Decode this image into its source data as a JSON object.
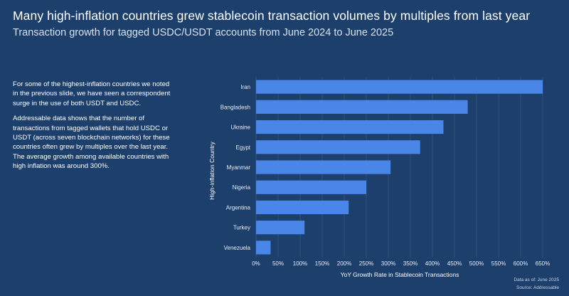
{
  "title": "Many high-inflation countries grew stablecoin transaction volumes by multiples from last year",
  "subtitle": "Transaction growth for tagged USDC/USDT accounts from June 2024 to June 2025",
  "body": {
    "paragraph1": "For some of the highest-inflation countries we noted in the previous slide, we have seen a correspondent surge in the use of both USDT and USDC.",
    "paragraph2": "Addressable data shows that the number of transactions from tagged wallets that hold USDC or USDT (across seven blockchain networks) for these countries often grew by multiples over the last year. The average growth among available countries with high inflation was around 300%."
  },
  "footnote": {
    "data_as_of": "Data as of: June 2025",
    "source": "Source: Addressable"
  },
  "colors": {
    "background": "#1d3f6b",
    "bar": "#4a86e8",
    "grid": "#3a5c87"
  },
  "chart_data": {
    "type": "bar",
    "orientation": "horizontal",
    "categories": [
      "Iran",
      "Bangladesh",
      "Ukraine",
      "Egypt",
      "Myanmar",
      "Nigeria",
      "Argentina",
      "Turkey",
      "Venezuela"
    ],
    "values": [
      650,
      480,
      425,
      372,
      305,
      250,
      210,
      110,
      33
    ],
    "xlabel": "YoY Growth Rate in Stablecoin Transactions",
    "ylabel": "High-inflation Country",
    "xlim": [
      0,
      650
    ],
    "xticks": [
      0,
      50,
      100,
      150,
      200,
      250,
      300,
      350,
      400,
      450,
      500,
      550,
      600,
      650
    ],
    "xtick_labels": [
      "0%",
      "50%",
      "100%",
      "150%",
      "200%",
      "250%",
      "300%",
      "350%",
      "400%",
      "450%",
      "500%",
      "550%",
      "600%",
      "650%"
    ],
    "grid": "vertical",
    "legend": "none"
  }
}
